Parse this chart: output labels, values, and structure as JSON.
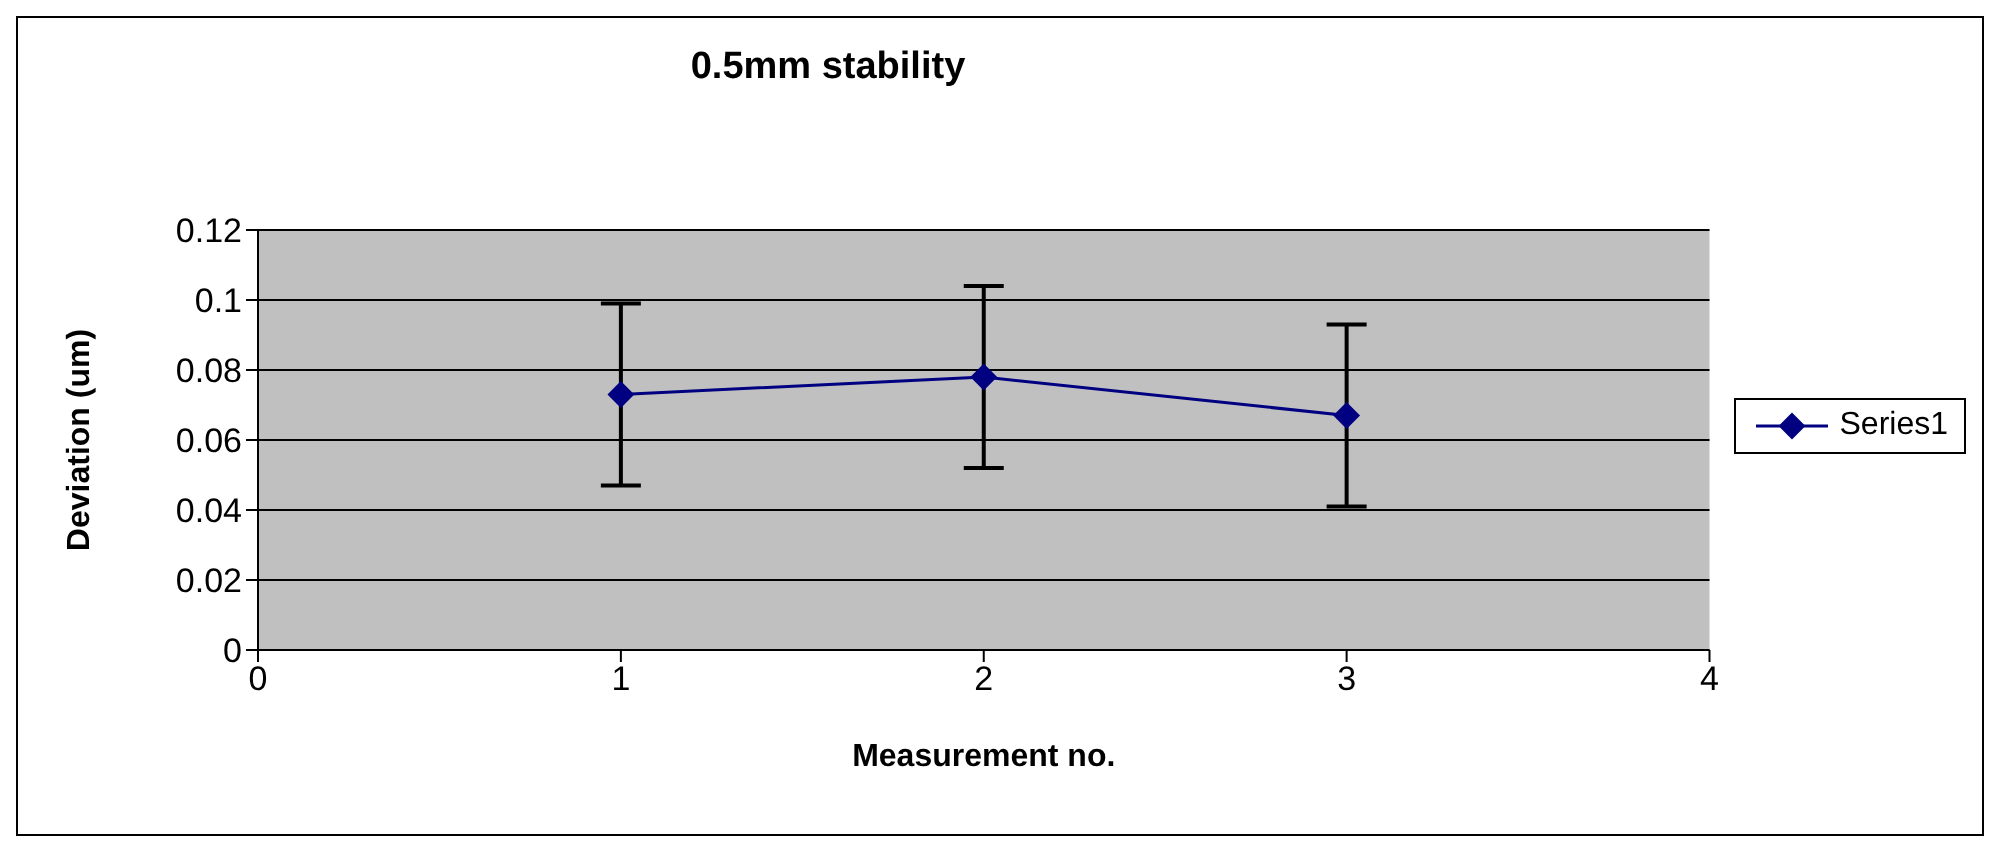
{
  "chart_data": {
    "type": "line",
    "title": "0.5mm stability",
    "xlabel": "Measurement no.",
    "ylabel": "Deviation (um)",
    "x": [
      1,
      2,
      3
    ],
    "series": [
      {
        "name": "Series1",
        "color": "#000080",
        "values": [
          0.073,
          0.078,
          0.067
        ],
        "errors": [
          0.026,
          0.026,
          0.026
        ]
      }
    ],
    "xlim": [
      0,
      4
    ],
    "xticks": [
      0,
      1,
      2,
      3,
      4
    ],
    "ylim": [
      0,
      0.12
    ],
    "yticks": [
      0,
      0.02,
      0.04,
      0.06,
      0.08,
      0.1,
      0.12
    ],
    "grid": "y",
    "legend": "right",
    "marker": "diamond"
  }
}
